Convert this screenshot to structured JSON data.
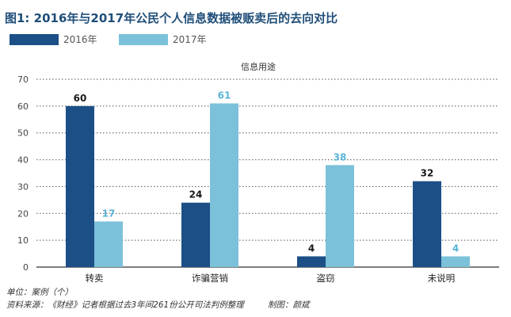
{
  "chart_data": {
    "type": "bar",
    "title": "图1: 2016年与2017年公民个人信息数据被贩卖后的去向对比",
    "subtitle": "信息用途",
    "categories": [
      "转卖",
      "诈骗营销",
      "盗窃",
      "未说明"
    ],
    "series": [
      {
        "name": "2016年",
        "color": "#1c4f86",
        "label_color": "#1a1a1a",
        "values": [
          60,
          24,
          4,
          32
        ]
      },
      {
        "name": "2017年",
        "color": "#7cc1da",
        "label_color": "#5ab4d4",
        "values": [
          17,
          61,
          38,
          4
        ]
      }
    ],
    "display_values": [
      [
        "60",
        "24",
        "4",
        "32"
      ],
      [
        "17",
        "61",
        "38",
        "4"
      ]
    ],
    "ylim": [
      0,
      70
    ],
    "yticks": [
      0,
      10,
      20,
      30,
      40,
      50,
      60,
      70
    ],
    "ytick_labels": [
      "0",
      "10",
      "20",
      "30",
      "40",
      "50",
      "60",
      "70"
    ],
    "grid": "dotted horizontal",
    "legend_position": "top-left",
    "xlabel": "",
    "ylabel": ""
  },
  "footer": {
    "unit": "单位：案例（个）",
    "source": "资料来源：《财经》记者根据过去3年间261份公开司法判例整理",
    "credit": "制图：颜斌"
  }
}
